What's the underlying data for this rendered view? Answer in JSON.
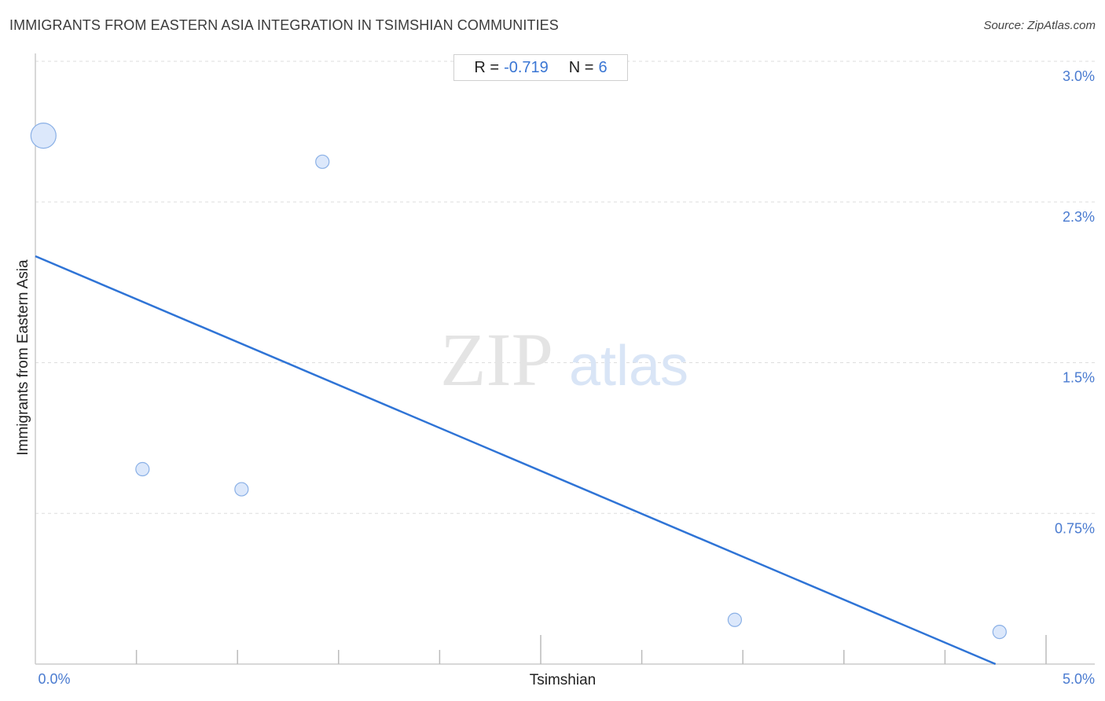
{
  "header": {
    "title": "IMMIGRANTS FROM EASTERN ASIA INTEGRATION IN TSIMSHIAN COMMUNITIES",
    "source": "Source: ZipAtlas.com"
  },
  "stats": {
    "r_label": "R =",
    "r_value": "-0.719",
    "n_label": "N =",
    "n_value": "6"
  },
  "watermark": {
    "zip": "ZIP",
    "atlas": "atlas"
  },
  "colors": {
    "accent": "#3a76d4",
    "point_fill": "#dce8fb",
    "point_stroke": "#8ab0e6",
    "trend": "#2f74d6",
    "grid": "#dddddd"
  },
  "chart_data": {
    "type": "scatter",
    "title": "IMMIGRANTS FROM EASTERN ASIA INTEGRATION IN TSIMSHIAN COMMUNITIES",
    "xlabel": "Tsimshian",
    "ylabel": "Immigrants from Eastern Asia",
    "xlim": [
      0,
      5.0
    ],
    "ylim": [
      0,
      3.0
    ],
    "x_tick_labels": [
      "0.0%",
      "5.0%"
    ],
    "y_ticks": [
      0.75,
      1.5,
      2.3,
      3.0
    ],
    "y_tick_labels": [
      "0.75%",
      "1.5%",
      "2.3%",
      "3.0%"
    ],
    "grid": true,
    "points": [
      {
        "x": 0.04,
        "y": 2.63,
        "size": "large"
      },
      {
        "x": 0.53,
        "y": 0.97,
        "size": "small"
      },
      {
        "x": 1.02,
        "y": 0.87,
        "size": "small"
      },
      {
        "x": 1.42,
        "y": 2.5,
        "size": "small"
      },
      {
        "x": 3.46,
        "y": 0.22,
        "size": "small"
      },
      {
        "x": 4.77,
        "y": 0.16,
        "size": "small"
      }
    ],
    "trendline": {
      "x": [
        0,
        4.75
      ],
      "y": [
        2.03,
        0.0
      ]
    },
    "r": -0.719,
    "n": 6
  }
}
